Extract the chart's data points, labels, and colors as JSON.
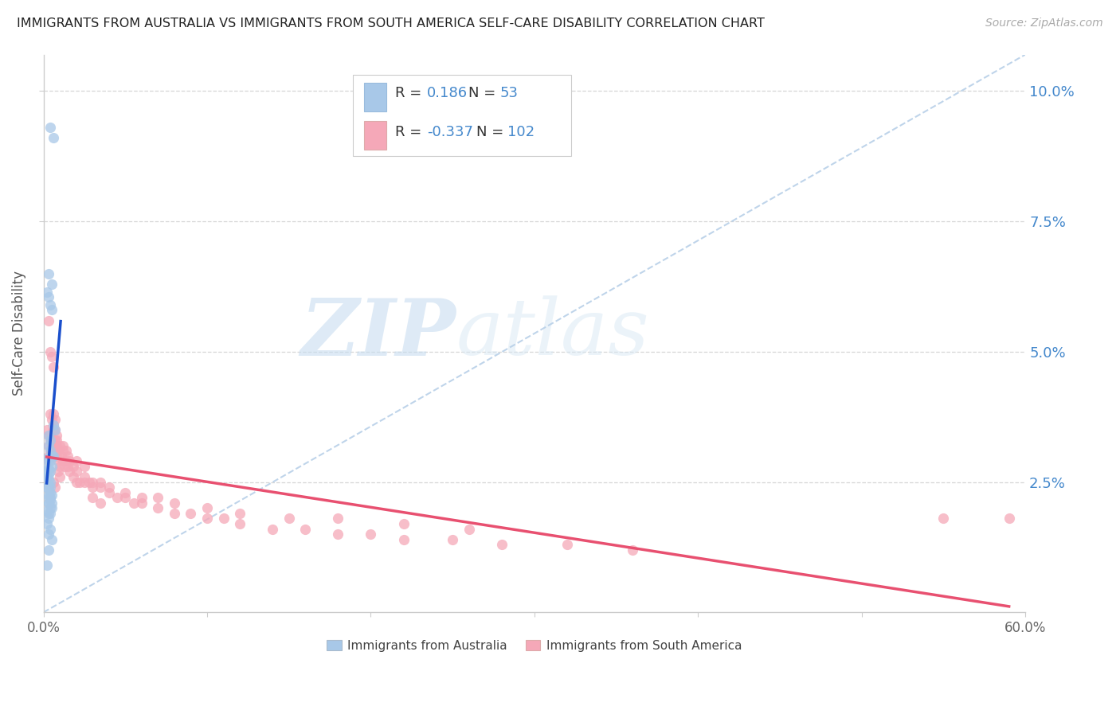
{
  "title": "IMMIGRANTS FROM AUSTRALIA VS IMMIGRANTS FROM SOUTH AMERICA SELF-CARE DISABILITY CORRELATION CHART",
  "source": "Source: ZipAtlas.com",
  "ylabel": "Self-Care Disability",
  "watermark_zip": "ZIP",
  "watermark_atlas": "atlas",
  "xlim": [
    0.0,
    0.6
  ],
  "ylim": [
    0.0,
    0.107
  ],
  "yticks_right": [
    0.025,
    0.05,
    0.075,
    0.1
  ],
  "ytick_labels_right": [
    "2.5%",
    "5.0%",
    "7.5%",
    "10.0%"
  ],
  "xticks": [
    0.0,
    0.1,
    0.2,
    0.3,
    0.4,
    0.5,
    0.6
  ],
  "xtick_labels_show": [
    "0.0%",
    "",
    "",
    "",
    "",
    "",
    "60.0%"
  ],
  "australia_R": "0.186",
  "australia_N": "53",
  "south_america_R": "-0.337",
  "south_america_N": "102",
  "australia_color": "#a8c8e8",
  "south_america_color": "#f5a8b8",
  "australia_line_color": "#1a4fcc",
  "south_america_line_color": "#e85070",
  "diagonal_color": "#b8d0e8",
  "grid_color": "#cccccc",
  "title_color": "#222222",
  "axis_label_color": "#555555",
  "right_axis_color": "#4488cc",
  "tick_label_color": "#666666",
  "australia_x": [
    0.004,
    0.006,
    0.003,
    0.005,
    0.002,
    0.003,
    0.004,
    0.005,
    0.006,
    0.007,
    0.003,
    0.004,
    0.003,
    0.004,
    0.005,
    0.006,
    0.002,
    0.003,
    0.004,
    0.005,
    0.002,
    0.003,
    0.004,
    0.002,
    0.003,
    0.002,
    0.003,
    0.004,
    0.003,
    0.004,
    0.002,
    0.003,
    0.004,
    0.005,
    0.003,
    0.004,
    0.003,
    0.004,
    0.005,
    0.003,
    0.003,
    0.004,
    0.005,
    0.002,
    0.003,
    0.004,
    0.003,
    0.002,
    0.004,
    0.003,
    0.005,
    0.003,
    0.002
  ],
  "australia_y": [
    0.093,
    0.091,
    0.065,
    0.063,
    0.0615,
    0.0605,
    0.059,
    0.058,
    0.036,
    0.035,
    0.034,
    0.033,
    0.032,
    0.031,
    0.03,
    0.03,
    0.0295,
    0.0295,
    0.029,
    0.028,
    0.028,
    0.0275,
    0.027,
    0.027,
    0.0265,
    0.026,
    0.0255,
    0.025,
    0.0245,
    0.024,
    0.024,
    0.0235,
    0.023,
    0.0225,
    0.0225,
    0.022,
    0.022,
    0.0215,
    0.021,
    0.021,
    0.021,
    0.02,
    0.02,
    0.0195,
    0.019,
    0.019,
    0.018,
    0.017,
    0.016,
    0.015,
    0.014,
    0.012,
    0.009
  ],
  "south_america_x": [
    0.002,
    0.003,
    0.004,
    0.003,
    0.004,
    0.005,
    0.003,
    0.004,
    0.005,
    0.004,
    0.005,
    0.006,
    0.004,
    0.005,
    0.006,
    0.005,
    0.006,
    0.007,
    0.006,
    0.007,
    0.008,
    0.007,
    0.008,
    0.009,
    0.008,
    0.009,
    0.01,
    0.011,
    0.012,
    0.013,
    0.014,
    0.015,
    0.016,
    0.018,
    0.02,
    0.022,
    0.025,
    0.028,
    0.03,
    0.035,
    0.04,
    0.045,
    0.05,
    0.055,
    0.06,
    0.07,
    0.08,
    0.09,
    0.1,
    0.11,
    0.12,
    0.14,
    0.16,
    0.18,
    0.2,
    0.22,
    0.25,
    0.28,
    0.32,
    0.36,
    0.003,
    0.004,
    0.005,
    0.006,
    0.007,
    0.008,
    0.009,
    0.01,
    0.012,
    0.014,
    0.016,
    0.018,
    0.02,
    0.025,
    0.03,
    0.035,
    0.04,
    0.05,
    0.06,
    0.07,
    0.08,
    0.1,
    0.12,
    0.15,
    0.18,
    0.22,
    0.26,
    0.003,
    0.004,
    0.005,
    0.006,
    0.007,
    0.008,
    0.01,
    0.012,
    0.015,
    0.02,
    0.025,
    0.03,
    0.035,
    0.55,
    0.59
  ],
  "south_america_y": [
    0.035,
    0.034,
    0.033,
    0.032,
    0.031,
    0.03,
    0.029,
    0.033,
    0.032,
    0.031,
    0.03,
    0.035,
    0.034,
    0.033,
    0.032,
    0.031,
    0.038,
    0.037,
    0.036,
    0.035,
    0.034,
    0.033,
    0.032,
    0.031,
    0.03,
    0.029,
    0.028,
    0.03,
    0.029,
    0.028,
    0.029,
    0.028,
    0.027,
    0.026,
    0.025,
    0.025,
    0.025,
    0.025,
    0.024,
    0.024,
    0.023,
    0.022,
    0.022,
    0.021,
    0.021,
    0.02,
    0.019,
    0.019,
    0.018,
    0.018,
    0.017,
    0.016,
    0.016,
    0.015,
    0.015,
    0.014,
    0.014,
    0.013,
    0.013,
    0.012,
    0.056,
    0.05,
    0.049,
    0.047,
    0.032,
    0.031,
    0.027,
    0.026,
    0.032,
    0.031,
    0.029,
    0.028,
    0.027,
    0.026,
    0.025,
    0.025,
    0.024,
    0.023,
    0.022,
    0.022,
    0.021,
    0.02,
    0.019,
    0.018,
    0.018,
    0.017,
    0.016,
    0.03,
    0.038,
    0.037,
    0.025,
    0.024,
    0.033,
    0.032,
    0.031,
    0.03,
    0.029,
    0.028,
    0.022,
    0.021,
    0.018,
    0.018
  ]
}
